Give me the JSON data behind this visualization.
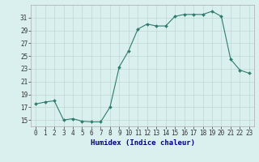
{
  "x": [
    0,
    1,
    2,
    3,
    4,
    5,
    6,
    7,
    8,
    9,
    10,
    11,
    12,
    13,
    14,
    15,
    16,
    17,
    18,
    19,
    20,
    21,
    22,
    23
  ],
  "y": [
    17.5,
    17.8,
    18.0,
    15.0,
    15.2,
    14.8,
    14.7,
    14.7,
    17.0,
    23.3,
    25.8,
    29.2,
    30.0,
    29.7,
    29.7,
    31.2,
    31.5,
    31.5,
    31.5,
    32.0,
    31.2,
    24.5,
    22.8,
    22.3
  ],
  "line_color": "#2e7d6e",
  "marker_color": "#2e7d6e",
  "bg_color": "#d9f0ee",
  "grid_color": "#c0d8d4",
  "xlabel": "Humidex (Indice chaleur)",
  "ylim": [
    14,
    33
  ],
  "xlim": [
    -0.5,
    23.5
  ],
  "yticks": [
    15,
    17,
    19,
    21,
    23,
    25,
    27,
    29,
    31
  ],
  "xticks": [
    0,
    1,
    2,
    3,
    4,
    5,
    6,
    7,
    8,
    9,
    10,
    11,
    12,
    13,
    14,
    15,
    16,
    17,
    18,
    19,
    20,
    21,
    22,
    23
  ],
  "tick_fontsize": 5.5,
  "xlabel_fontsize": 6.5,
  "line_width": 0.8,
  "marker_size": 2.0
}
